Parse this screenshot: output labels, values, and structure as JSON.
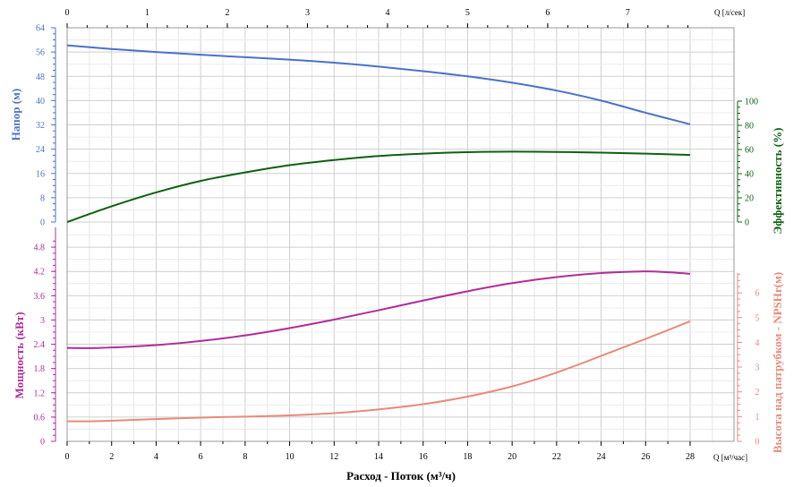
{
  "chart_data": {
    "type": "line",
    "xlabel": "Расход - Поток (м³/ч)",
    "x_unit_label": "Q [м³/час]",
    "x_ticks": [
      "0",
      "2",
      "4",
      "6",
      "8",
      "10",
      "12",
      "14",
      "16",
      "18",
      "20",
      "22",
      "24",
      "26",
      "28"
    ],
    "xlim": [
      0,
      28
    ],
    "top_axis_label": "Q [л/сек]",
    "top_ticks": [
      "0",
      "1",
      "2",
      "3",
      "4",
      "5",
      "6",
      "7"
    ],
    "head": {
      "ylabel": "Напор (м)",
      "y_ticks": [
        "0",
        "8",
        "16",
        "24",
        "32",
        "40",
        "48",
        "56",
        "64"
      ],
      "ylim": [
        0,
        64
      ],
      "color": "#4a72c8",
      "x": [
        0,
        2,
        4,
        6,
        8,
        10,
        12,
        14,
        16,
        18,
        20,
        22,
        24,
        26,
        28
      ],
      "values": [
        58.2,
        57.0,
        56.0,
        55.1,
        54.3,
        53.5,
        52.5,
        51.2,
        49.7,
        48.0,
        45.9,
        43.3,
        40.0,
        36.0,
        32.2
      ]
    },
    "efficiency": {
      "ylabel": "Эффективность (%)",
      "y_ticks": [
        "0",
        "20",
        "40",
        "60",
        "80",
        "100"
      ],
      "ylim": [
        0,
        100
      ],
      "color": "#0e6010",
      "x": [
        0,
        2,
        4,
        6,
        8,
        10,
        12,
        14,
        16,
        18,
        20,
        22,
        24,
        26,
        28
      ],
      "values": [
        0,
        13,
        24.5,
        34,
        41,
        47,
        51.3,
        54.6,
        56.6,
        57.8,
        58.2,
        58,
        57.4,
        56.6,
        55.5
      ]
    },
    "power": {
      "ylabel": "Мощность (кВт)",
      "y_ticks": [
        "0",
        "0.6",
        "1.2",
        "1.8",
        "2.4",
        "3",
        "3.6",
        "4.2",
        "4.8"
      ],
      "ylim": [
        0,
        5.2
      ],
      "color": "#b12c9a",
      "x": [
        0,
        1.5,
        4,
        6,
        8,
        10,
        12,
        14,
        16,
        18,
        20,
        22,
        24,
        25.8,
        27,
        28
      ],
      "values": [
        2.31,
        2.31,
        2.38,
        2.48,
        2.62,
        2.8,
        3.01,
        3.24,
        3.48,
        3.71,
        3.91,
        4.06,
        4.16,
        4.2,
        4.18,
        4.14
      ]
    },
    "npsh": {
      "ylabel": "Высота над патрубком - NPSHr(м)",
      "y_ticks": [
        "0",
        "1",
        "2",
        "3",
        "4",
        "5",
        "6"
      ],
      "ylim": [
        0,
        6.8
      ],
      "color": "#e88a7a",
      "x": [
        0,
        1.5,
        4,
        6,
        8,
        10,
        12,
        14,
        16,
        18,
        20,
        22,
        24,
        26,
        28
      ],
      "values": [
        0.81,
        0.82,
        0.9,
        0.96,
        1.0,
        1.05,
        1.14,
        1.29,
        1.5,
        1.81,
        2.22,
        2.78,
        3.45,
        4.14,
        4.85
      ]
    },
    "grid": true
  }
}
